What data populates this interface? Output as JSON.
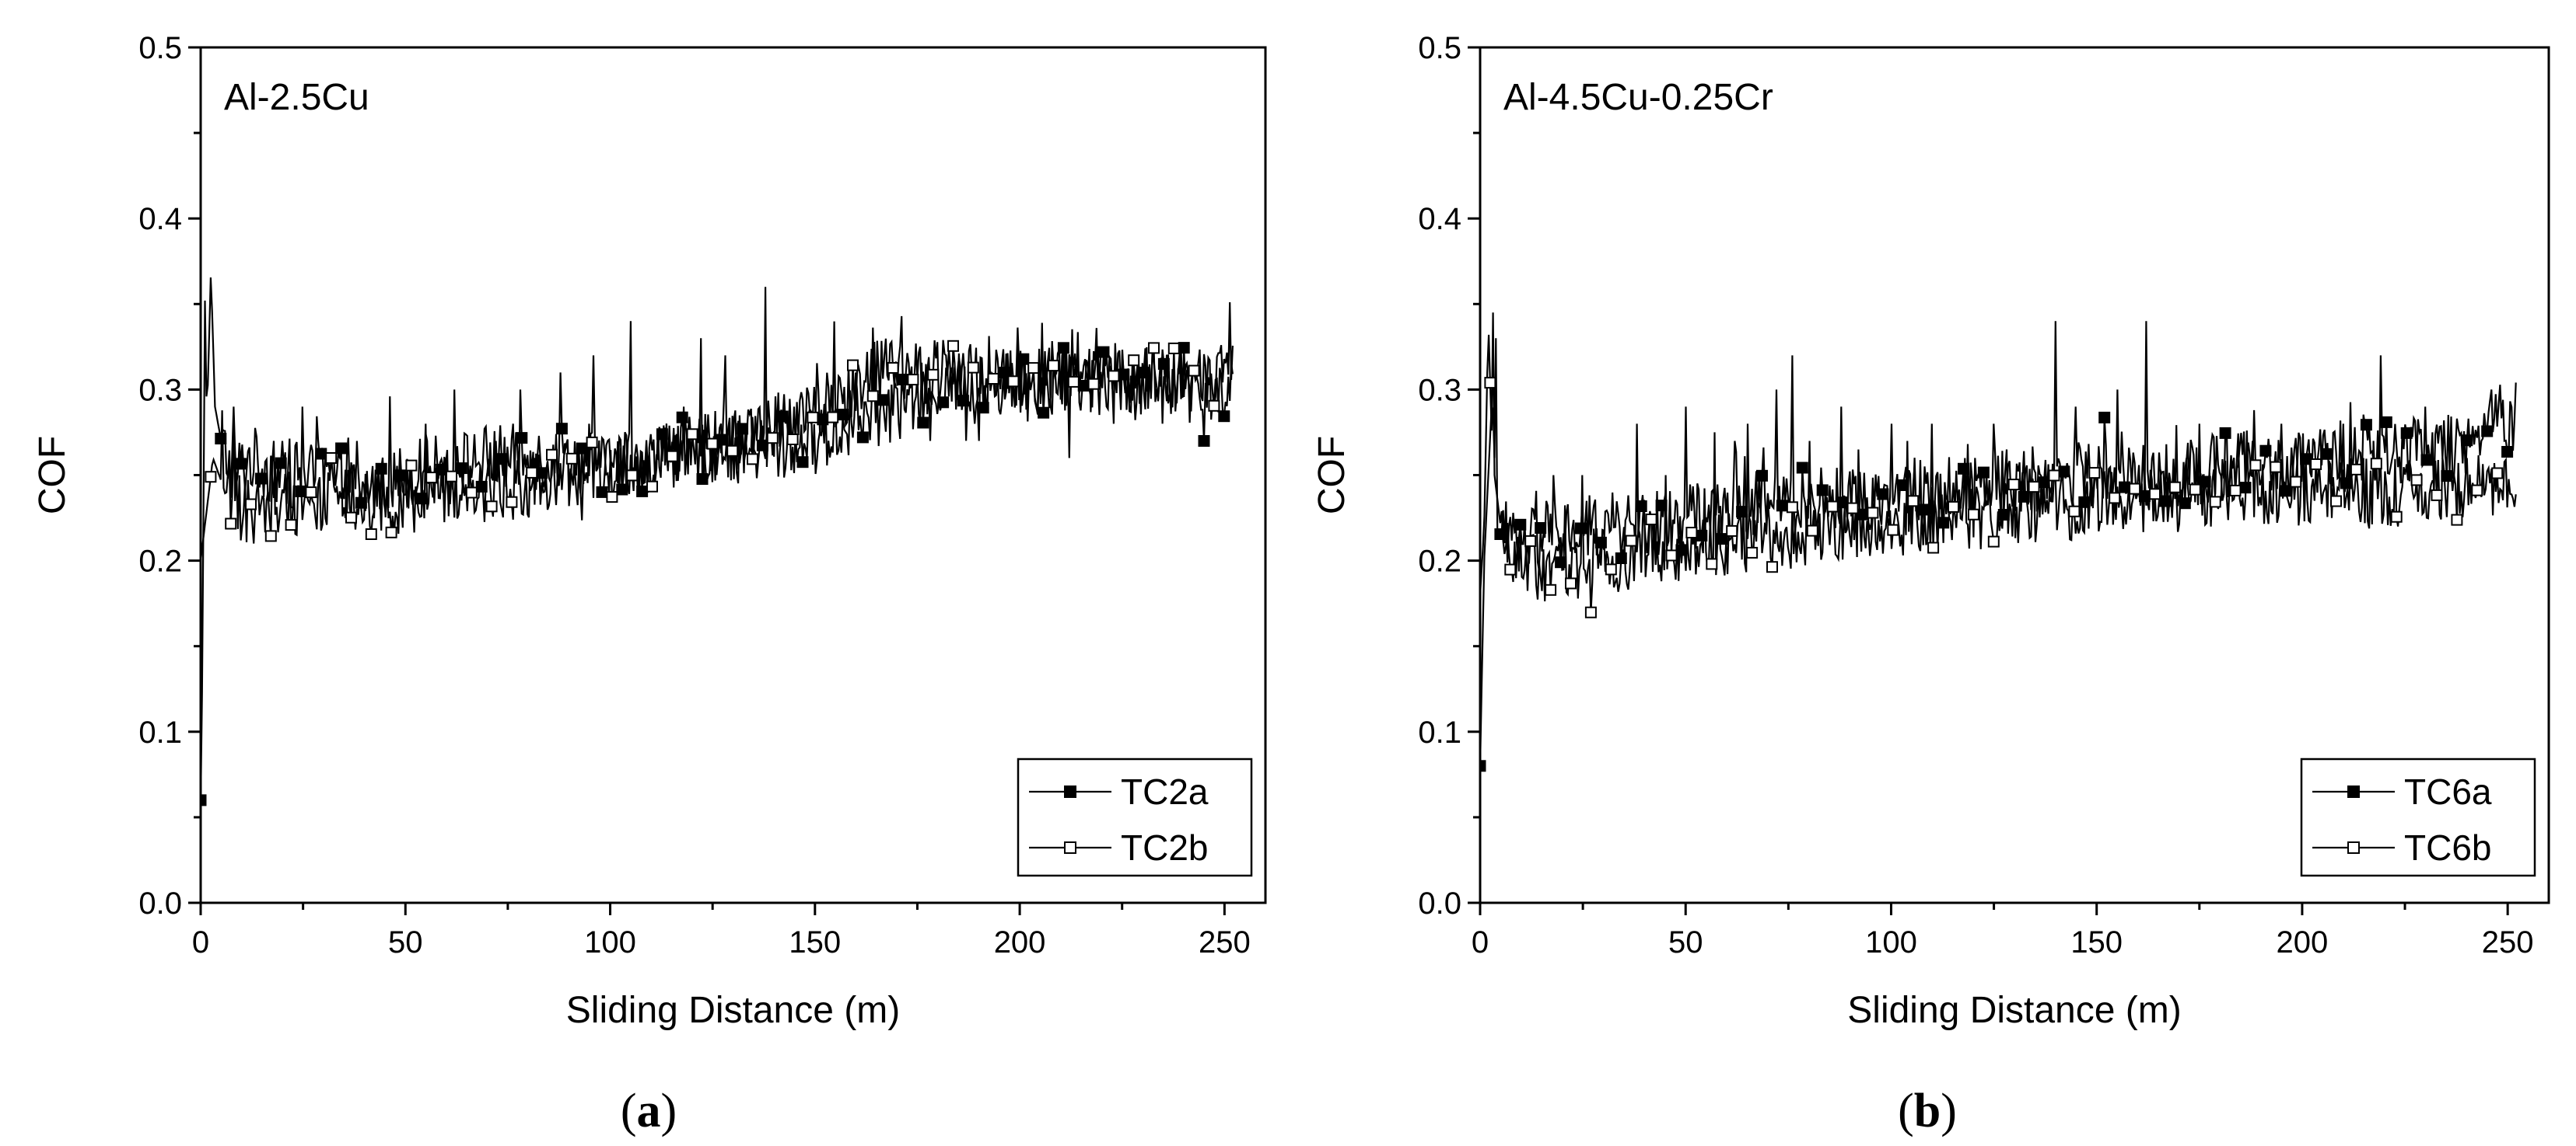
{
  "chart_data": [
    {
      "id": "a",
      "type": "line",
      "panel_label": "a",
      "annotation": "Al-2.5Cu",
      "xlabel": "Sliding Distance (m)",
      "ylabel": "COF",
      "xlim": [
        0,
        260
      ],
      "ylim": [
        0,
        0.5
      ],
      "xticks": [
        0,
        50,
        100,
        150,
        200,
        250
      ],
      "yticks": [
        0.0,
        0.1,
        0.2,
        0.3,
        0.4,
        0.5
      ],
      "xtick_labels": [
        "0",
        "50",
        "100",
        "150",
        "200",
        "250"
      ],
      "ytick_labels": [
        "0.0",
        "0.1",
        "0.2",
        "0.3",
        "0.4",
        "0.5"
      ],
      "legend_position": "bottom-right",
      "series": [
        {
          "name": "TC2a",
          "marker": "filled-square",
          "x_start": 0,
          "x_end": 252,
          "points": [
            [
              0,
              0.06
            ],
            [
              0.5,
              0.15
            ],
            [
              1,
              0.36
            ],
            [
              1.5,
              0.28
            ],
            [
              2.5,
              0.37
            ],
            [
              3.5,
              0.29
            ],
            [
              5,
              0.27
            ],
            [
              8,
              0.25
            ],
            [
              12,
              0.26
            ],
            [
              20,
              0.25
            ],
            [
              30,
              0.25
            ],
            [
              40,
              0.24
            ],
            [
              50,
              0.25
            ],
            [
              60,
              0.255
            ],
            [
              70,
              0.26
            ],
            [
              80,
              0.26
            ],
            [
              90,
              0.26
            ],
            [
              100,
              0.255
            ],
            [
              110,
              0.26
            ],
            [
              120,
              0.265
            ],
            [
              130,
              0.265
            ],
            [
              140,
              0.265
            ],
            [
              150,
              0.27
            ],
            [
              160,
              0.28
            ],
            [
              170,
              0.29
            ],
            [
              180,
              0.3
            ],
            [
              190,
              0.3
            ],
            [
              200,
              0.305
            ],
            [
              210,
              0.305
            ],
            [
              220,
              0.305
            ],
            [
              230,
              0.305
            ],
            [
              240,
              0.305
            ],
            [
              252,
              0.3
            ]
          ],
          "spikes": [
            [
              8,
              0.29
            ],
            [
              25,
              0.29
            ],
            [
              38,
              0.27
            ],
            [
              62,
              0.3
            ],
            [
              78,
              0.3
            ],
            [
              88,
              0.31
            ],
            [
              96,
              0.32
            ],
            [
              105,
              0.34
            ],
            [
              122,
              0.33
            ],
            [
              128,
              0.32
            ],
            [
              138,
              0.36
            ],
            [
              160,
              0.31
            ],
            [
              178,
              0.27
            ],
            [
              212,
              0.26
            ],
            [
              223,
              0.28
            ],
            [
              245,
              0.27
            ]
          ]
        },
        {
          "name": "TC2b",
          "marker": "open-square",
          "x_start": 0,
          "x_end": 252,
          "points": [
            [
              0,
              0.2
            ],
            [
              1,
              0.22
            ],
            [
              3,
              0.26
            ],
            [
              6,
              0.24
            ],
            [
              10,
              0.23
            ],
            [
              20,
              0.235
            ],
            [
              30,
              0.235
            ],
            [
              40,
              0.235
            ],
            [
              50,
              0.235
            ],
            [
              60,
              0.24
            ],
            [
              70,
              0.24
            ],
            [
              80,
              0.245
            ],
            [
              90,
              0.25
            ],
            [
              100,
              0.255
            ],
            [
              110,
              0.26
            ],
            [
              120,
              0.265
            ],
            [
              130,
              0.27
            ],
            [
              140,
              0.28
            ],
            [
              150,
              0.285
            ],
            [
              158,
              0.3
            ],
            [
              165,
              0.31
            ],
            [
              175,
              0.31
            ],
            [
              185,
              0.31
            ],
            [
              195,
              0.305
            ],
            [
              205,
              0.305
            ],
            [
              215,
              0.305
            ],
            [
              225,
              0.305
            ],
            [
              235,
              0.305
            ],
            [
              245,
              0.305
            ],
            [
              252,
              0.31
            ]
          ],
          "spikes": [
            [
              8,
              0.28
            ],
            [
              13,
              0.21
            ],
            [
              18,
              0.27
            ],
            [
              32,
              0.26
            ],
            [
              55,
              0.28
            ],
            [
              72,
              0.27
            ],
            [
              95,
              0.28
            ],
            [
              118,
              0.29
            ],
            [
              145,
              0.29
            ],
            [
              167,
              0.32
            ],
            [
              182,
              0.32
            ],
            [
              190,
              0.27
            ],
            [
              198,
              0.29
            ],
            [
              235,
              0.28
            ]
          ]
        }
      ]
    },
    {
      "id": "b",
      "type": "line",
      "panel_label": "b",
      "annotation": "Al-4.5Cu-0.25Cr",
      "xlabel": "Sliding Distance (m)",
      "ylabel": "COF",
      "xlim": [
        0,
        260
      ],
      "ylim": [
        0,
        0.5
      ],
      "xticks": [
        0,
        50,
        100,
        150,
        200,
        250
      ],
      "yticks": [
        0.0,
        0.1,
        0.2,
        0.3,
        0.4,
        0.5
      ],
      "xtick_labels": [
        "0",
        "50",
        "100",
        "150",
        "200",
        "250"
      ],
      "ytick_labels": [
        "0.0",
        "0.1",
        "0.2",
        "0.3",
        "0.4",
        "0.5"
      ],
      "legend_position": "bottom-right",
      "series": [
        {
          "name": "TC6a",
          "marker": "filled-square",
          "x_start": 0,
          "x_end": 252,
          "points": [
            [
              0,
              0.08
            ],
            [
              1,
              0.2
            ],
            [
              2,
              0.25
            ],
            [
              3,
              0.3
            ],
            [
              4,
              0.22
            ],
            [
              6,
              0.21
            ],
            [
              10,
              0.21
            ],
            [
              20,
              0.215
            ],
            [
              30,
              0.22
            ],
            [
              40,
              0.22
            ],
            [
              50,
              0.225
            ],
            [
              60,
              0.23
            ],
            [
              70,
              0.235
            ],
            [
              80,
              0.235
            ],
            [
              90,
              0.235
            ],
            [
              100,
              0.24
            ],
            [
              110,
              0.24
            ],
            [
              120,
              0.245
            ],
            [
              130,
              0.245
            ],
            [
              140,
              0.25
            ],
            [
              150,
              0.25
            ],
            [
              160,
              0.25
            ],
            [
              170,
              0.25
            ],
            [
              180,
              0.255
            ],
            [
              190,
              0.255
            ],
            [
              200,
              0.255
            ],
            [
              210,
              0.26
            ],
            [
              220,
              0.26
            ],
            [
              230,
              0.265
            ],
            [
              240,
              0.27
            ],
            [
              248,
              0.285
            ],
            [
              252,
              0.275
            ]
          ],
          "spikes": [
            [
              4,
              0.33
            ],
            [
              18,
              0.25
            ],
            [
              38,
              0.28
            ],
            [
              50,
              0.29
            ],
            [
              62,
              0.27
            ],
            [
              72,
              0.3
            ],
            [
              76,
              0.32
            ],
            [
              88,
              0.29
            ],
            [
              100,
              0.28
            ],
            [
              110,
              0.28
            ],
            [
              125,
              0.28
            ],
            [
              140,
              0.34
            ],
            [
              145,
              0.29
            ],
            [
              155,
              0.3
            ],
            [
              162,
              0.34
            ],
            [
              175,
              0.28
            ],
            [
              195,
              0.28
            ],
            [
              210,
              0.28
            ],
            [
              219,
              0.32
            ],
            [
              230,
              0.29
            ],
            [
              246,
              0.3
            ]
          ]
        },
        {
          "name": "TC6b",
          "marker": "open-square",
          "x_start": 0,
          "x_end": 252,
          "points": [
            [
              0,
              0.18
            ],
            [
              1,
              0.22
            ],
            [
              2,
              0.34
            ],
            [
              3,
              0.26
            ],
            [
              5,
              0.22
            ],
            [
              8,
              0.2
            ],
            [
              15,
              0.195
            ],
            [
              20,
              0.195
            ],
            [
              30,
              0.2
            ],
            [
              40,
              0.205
            ],
            [
              50,
              0.205
            ],
            [
              60,
              0.21
            ],
            [
              70,
              0.215
            ],
            [
              80,
              0.215
            ],
            [
              90,
              0.22
            ],
            [
              100,
              0.22
            ],
            [
              110,
              0.225
            ],
            [
              120,
              0.225
            ],
            [
              130,
              0.23
            ],
            [
              140,
              0.23
            ],
            [
              150,
              0.235
            ],
            [
              160,
              0.235
            ],
            [
              170,
              0.235
            ],
            [
              180,
              0.24
            ],
            [
              190,
              0.24
            ],
            [
              200,
              0.24
            ],
            [
              210,
              0.24
            ],
            [
              220,
              0.24
            ],
            [
              230,
              0.24
            ],
            [
              240,
              0.245
            ],
            [
              252,
              0.24
            ]
          ],
          "spikes": [
            [
              3,
              0.345
            ],
            [
              25,
              0.25
            ],
            [
              45,
              0.25
            ],
            [
              57,
              0.275
            ],
            [
              65,
              0.28
            ],
            [
              80,
              0.27
            ],
            [
              92,
              0.265
            ],
            [
              104,
              0.27
            ],
            [
              118,
              0.26
            ],
            [
              128,
              0.265
            ],
            [
              150,
              0.25
            ],
            [
              172,
              0.26
            ],
            [
              188,
              0.27
            ],
            [
              215,
              0.26
            ],
            [
              240,
              0.26
            ]
          ]
        }
      ]
    }
  ]
}
